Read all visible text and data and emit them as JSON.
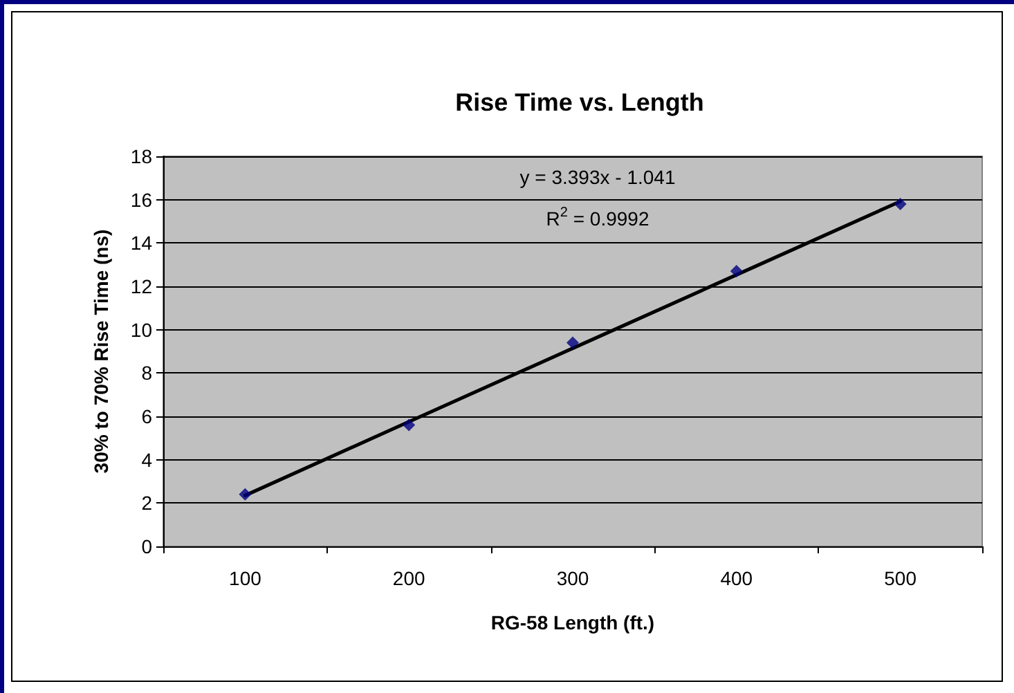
{
  "chart_data": {
    "type": "scatter",
    "title": "Rise Time vs. Length",
    "xlabel": "RG-58 Length (ft.)",
    "ylabel": "30% to 70% Rise Time (ns)",
    "categories": [
      "100",
      "200",
      "300",
      "400",
      "500"
    ],
    "series": [
      {
        "color": "#000080",
        "values": [
          2.4,
          5.6,
          9.4,
          12.7,
          15.8
        ]
      },
      {
        "type": "line",
        "marker": "none",
        "color": "#000000",
        "values": [
          2.35,
          5.75,
          9.14,
          12.53,
          15.92
        ]
      }
    ],
    "ylim": [
      0,
      18
    ],
    "yticks": [
      0,
      2,
      4,
      6,
      8,
      10,
      12,
      14,
      16,
      18
    ],
    "grid": "y",
    "marker": "diamond",
    "annotations": [
      "y = 3.393x - 1.041",
      "R$^{2}$ = 0.9992"
    ]
  }
}
